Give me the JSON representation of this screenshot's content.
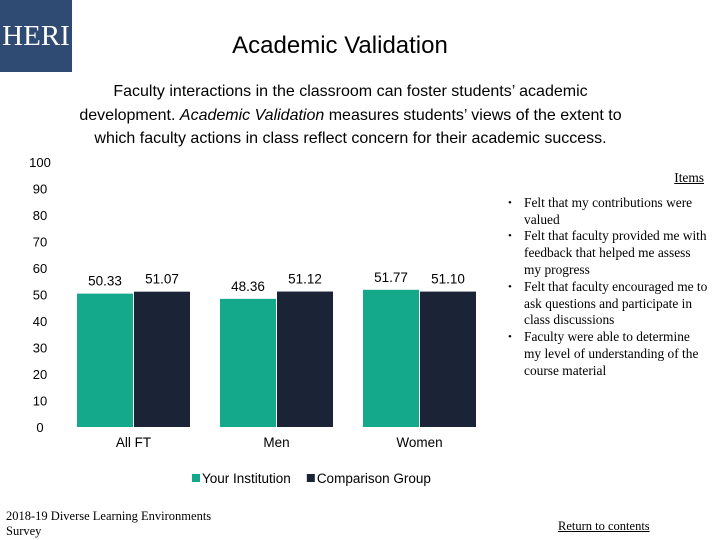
{
  "logo_text": "HERI",
  "title": "Academic Validation",
  "description": {
    "before": "Faculty interactions in the classroom can foster students’ academic development. ",
    "emphasis": "Academic Validation",
    "after": " measures students’ views of the extent to which faculty actions in class reflect concern for their academic success."
  },
  "items_box": {
    "title": "Items",
    "items": [
      "Felt that my contributions were valued",
      "Felt that faculty provided me with feedback that helped me assess my progress",
      "Felt that faculty encouraged me to ask questions and participate in class discussions",
      "Faculty were able to determine my level of understanding of the course material"
    ]
  },
  "footer": "2018-19 Diverse Learning Environments Survey",
  "return_link": "Return to contents",
  "chart_data": {
    "type": "bar",
    "categories": [
      "All FT",
      "Men",
      "Women"
    ],
    "series": [
      {
        "name": "Your Institution",
        "values": [
          50.33,
          48.36,
          51.77
        ],
        "color": "#14a98b"
      },
      {
        "name": "Comparison Group",
        "values": [
          51.07,
          51.12,
          51.1
        ],
        "color": "#1b2437"
      }
    ],
    "ylim": [
      0,
      100
    ],
    "yticks": [
      0,
      10,
      20,
      30,
      40,
      50,
      60,
      70,
      80,
      90,
      100
    ],
    "grid": false,
    "legend_position": "bottom",
    "value_labels": [
      "50.33",
      "51.07",
      "48.36",
      "51.12",
      "51.77",
      "51.10"
    ]
  }
}
